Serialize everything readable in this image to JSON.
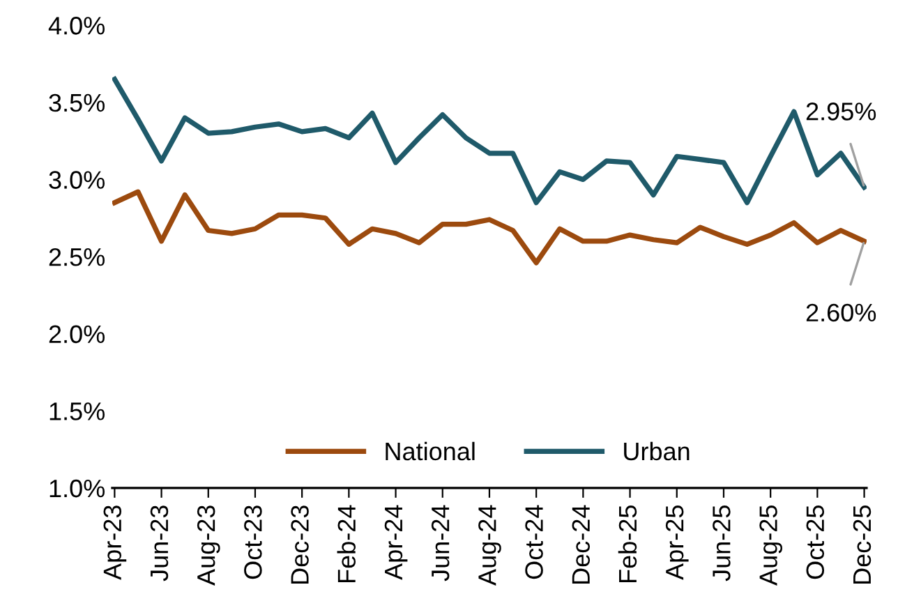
{
  "chart_data": {
    "type": "line",
    "categories": [
      "Apr-23",
      null,
      "Jun-23",
      null,
      "Aug-23",
      null,
      "Oct-23",
      null,
      "Dec-23",
      null,
      "Feb-24",
      null,
      "Apr-24",
      null,
      "Jun-24",
      null,
      "Aug-24",
      null,
      "Oct-24",
      null,
      "Dec-24",
      null,
      "Feb-25",
      null,
      "Apr-25",
      null,
      "Jun-25",
      null,
      "Aug-25",
      null,
      "Oct-25",
      null,
      "Dec-25"
    ],
    "series": [
      {
        "name": "National",
        "color": "#9c4a0e",
        "values": [
          2.85,
          2.92,
          2.6,
          2.9,
          2.67,
          2.65,
          2.68,
          2.77,
          2.77,
          2.75,
          2.58,
          2.68,
          2.65,
          2.59,
          2.71,
          2.71,
          2.74,
          2.67,
          2.46,
          2.68,
          2.6,
          2.6,
          2.64,
          2.61,
          2.59,
          2.69,
          2.63,
          2.58,
          2.64,
          2.72,
          2.59,
          2.67,
          2.6
        ]
      },
      {
        "name": "Urban",
        "color": "#1f5a6a",
        "values": [
          3.65,
          3.39,
          3.12,
          3.4,
          3.3,
          3.31,
          3.34,
          3.36,
          3.31,
          3.33,
          3.27,
          3.43,
          3.11,
          3.27,
          3.42,
          3.27,
          3.17,
          3.17,
          2.85,
          3.05,
          3.0,
          3.12,
          3.11,
          2.9,
          3.15,
          3.13,
          3.11,
          2.85,
          3.15,
          3.44,
          3.03,
          3.17,
          2.95
        ]
      }
    ],
    "ylim": [
      1.0,
      4.0
    ],
    "yticks": [
      {
        "value": 1.0,
        "label": "1.0%"
      },
      {
        "value": 1.5,
        "label": "1.5%"
      },
      {
        "value": 2.0,
        "label": "2.0%"
      },
      {
        "value": 2.5,
        "label": "2.5%"
      },
      {
        "value": 3.0,
        "label": "3.0%"
      },
      {
        "value": 3.5,
        "label": "3.5%"
      },
      {
        "value": 4.0,
        "label": "4.0%"
      }
    ],
    "annotations": [
      {
        "text": "2.95%",
        "x": "Dec-25",
        "y": 2.95
      },
      {
        "text": "2.60%",
        "x": "Dec-25",
        "y": 2.6
      }
    ],
    "legend": "bottom",
    "grid": false,
    "marker": "none",
    "line_style": "solid"
  }
}
